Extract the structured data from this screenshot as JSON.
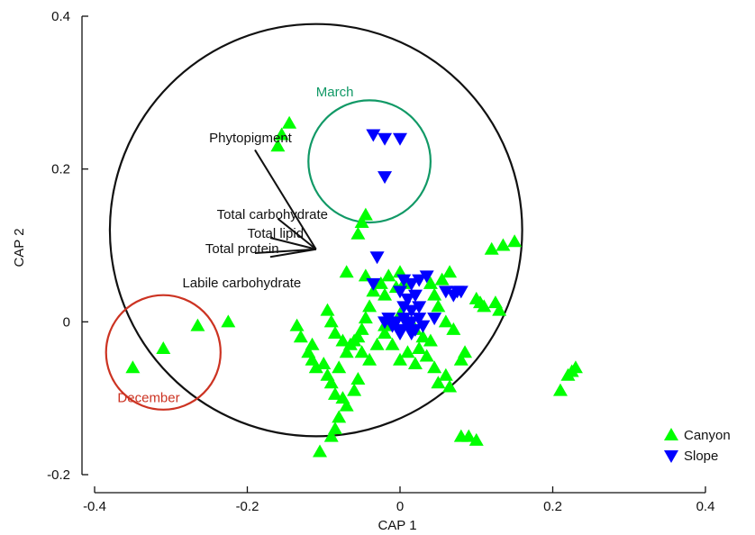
{
  "chart_data": {
    "type": "scatter",
    "title": "",
    "xlabel": "CAP 1",
    "ylabel": "CAP 2",
    "xlim": [
      -0.4,
      0.4
    ],
    "ylim": [
      -0.2,
      0.4
    ],
    "xticks": [
      -0.4,
      -0.2,
      0,
      0.2,
      0.4
    ],
    "yticks": [
      -0.2,
      0,
      0.2,
      0.4
    ],
    "xtick_labels": [
      "-0.4",
      "-0.2",
      "0",
      "0.2",
      "0.4"
    ],
    "ytick_labels": [
      "-0.2",
      "0",
      "0.2",
      "0.4"
    ],
    "grid": false,
    "legend_position": "bottom-right",
    "series": [
      {
        "name": "Canyon",
        "marker": "triangle-up",
        "color": "#00ff00",
        "points": [
          [
            -0.16,
            0.23
          ],
          [
            -0.155,
            0.245
          ],
          [
            -0.145,
            0.26
          ],
          [
            -0.055,
            0.115
          ],
          [
            -0.05,
            0.13
          ],
          [
            -0.045,
            0.14
          ],
          [
            -0.07,
            0.065
          ],
          [
            -0.045,
            0.06
          ],
          [
            -0.035,
            0.04
          ],
          [
            -0.04,
            0.02
          ],
          [
            -0.045,
            0.005
          ],
          [
            -0.05,
            -0.01
          ],
          [
            -0.055,
            -0.02
          ],
          [
            -0.025,
            0.05
          ],
          [
            -0.02,
            0.035
          ],
          [
            -0.015,
            0.06
          ],
          [
            -0.005,
            0.045
          ],
          [
            0.0,
            0.065
          ],
          [
            0.005,
            0.05
          ],
          [
            0.04,
            0.05
          ],
          [
            0.045,
            0.035
          ],
          [
            0.055,
            0.055
          ],
          [
            0.065,
            0.065
          ],
          [
            0.05,
            0.02
          ],
          [
            0.06,
            0.0
          ],
          [
            0.07,
            -0.01
          ],
          [
            -0.095,
            0.015
          ],
          [
            -0.09,
            0.0
          ],
          [
            -0.085,
            -0.015
          ],
          [
            -0.075,
            -0.025
          ],
          [
            -0.07,
            -0.04
          ],
          [
            -0.065,
            -0.03
          ],
          [
            -0.06,
            -0.025
          ],
          [
            -0.05,
            -0.04
          ],
          [
            -0.04,
            -0.05
          ],
          [
            -0.03,
            -0.03
          ],
          [
            -0.02,
            -0.015
          ],
          [
            -0.01,
            -0.03
          ],
          [
            0.0,
            -0.05
          ],
          [
            0.01,
            -0.04
          ],
          [
            0.02,
            -0.055
          ],
          [
            0.025,
            -0.035
          ],
          [
            0.035,
            -0.045
          ],
          [
            0.04,
            -0.025
          ],
          [
            0.045,
            -0.06
          ],
          [
            0.05,
            -0.08
          ],
          [
            0.06,
            -0.07
          ],
          [
            0.065,
            -0.085
          ],
          [
            0.08,
            -0.05
          ],
          [
            0.085,
            -0.04
          ],
          [
            -0.115,
            -0.05
          ],
          [
            -0.11,
            -0.06
          ],
          [
            -0.1,
            -0.055
          ],
          [
            -0.095,
            -0.07
          ],
          [
            -0.09,
            -0.08
          ],
          [
            -0.085,
            -0.095
          ],
          [
            -0.08,
            -0.06
          ],
          [
            -0.075,
            -0.1
          ],
          [
            -0.07,
            -0.11
          ],
          [
            -0.08,
            -0.125
          ],
          [
            -0.085,
            -0.14
          ],
          [
            -0.09,
            -0.15
          ],
          [
            -0.06,
            -0.09
          ],
          [
            -0.055,
            -0.075
          ],
          [
            -0.135,
            -0.005
          ],
          [
            -0.13,
            -0.02
          ],
          [
            -0.12,
            -0.04
          ],
          [
            -0.115,
            -0.03
          ],
          [
            -0.105,
            -0.17
          ],
          [
            0.08,
            -0.15
          ],
          [
            0.09,
            -0.15
          ],
          [
            0.1,
            -0.155
          ],
          [
            0.1,
            0.03
          ],
          [
            0.105,
            0.025
          ],
          [
            0.11,
            0.02
          ],
          [
            0.125,
            0.025
          ],
          [
            0.13,
            0.015
          ],
          [
            0.12,
            0.095
          ],
          [
            0.135,
            0.1
          ],
          [
            0.15,
            0.105
          ],
          [
            0.21,
            -0.09
          ],
          [
            0.22,
            -0.07
          ],
          [
            0.225,
            -0.065
          ],
          [
            0.23,
            -0.06
          ],
          [
            -0.35,
            -0.06
          ],
          [
            -0.31,
            -0.035
          ],
          [
            -0.265,
            -0.005
          ],
          [
            -0.225,
            0.0
          ],
          [
            -0.02,
            -0.005
          ],
          [
            0.0,
            0.01
          ],
          [
            0.01,
            0.0
          ],
          [
            0.02,
            -0.01
          ],
          [
            0.03,
            -0.02
          ]
        ]
      },
      {
        "name": "Slope",
        "marker": "triangle-down",
        "color": "#0000ff",
        "points": [
          [
            -0.035,
            0.245
          ],
          [
            -0.02,
            0.24
          ],
          [
            0.0,
            0.24
          ],
          [
            -0.02,
            0.19
          ],
          [
            -0.03,
            0.085
          ],
          [
            -0.035,
            0.05
          ],
          [
            0.005,
            0.055
          ],
          [
            0.015,
            0.05
          ],
          [
            0.025,
            0.055
          ],
          [
            0.035,
            0.06
          ],
          [
            0.06,
            0.04
          ],
          [
            0.07,
            0.035
          ],
          [
            0.075,
            0.04
          ],
          [
            0.08,
            0.04
          ],
          [
            0.0,
            0.04
          ],
          [
            0.01,
            0.03
          ],
          [
            0.02,
            0.035
          ],
          [
            0.005,
            0.02
          ],
          [
            0.015,
            0.015
          ],
          [
            0.025,
            0.02
          ],
          [
            -0.015,
            0.005
          ],
          [
            -0.005,
            0.0
          ],
          [
            0.005,
            0.005
          ],
          [
            0.015,
            0.0
          ],
          [
            0.025,
            0.005
          ],
          [
            -0.01,
            -0.005
          ],
          [
            0.0,
            -0.01
          ],
          [
            0.01,
            -0.005
          ],
          [
            0.02,
            -0.01
          ],
          [
            0.03,
            -0.005
          ],
          [
            0.045,
            0.005
          ],
          [
            -0.02,
            0.0
          ],
          [
            0.0,
            -0.015
          ],
          [
            0.015,
            -0.015
          ]
        ]
      }
    ],
    "vectors": [
      {
        "label": "Phytopigment",
        "origin": [
          -0.11,
          0.095
        ],
        "end": [
          -0.19,
          0.225
        ]
      },
      {
        "label": "Total carbohydrate",
        "origin": [
          -0.11,
          0.095
        ],
        "end": [
          -0.16,
          0.135
        ]
      },
      {
        "label": "Total lipid",
        "origin": [
          -0.11,
          0.095
        ],
        "end": [
          -0.17,
          0.11
        ]
      },
      {
        "label": "Total protein",
        "origin": [
          -0.11,
          0.095
        ],
        "end": [
          -0.19,
          0.09
        ]
      },
      {
        "label": "Labile carbohydrate",
        "origin": [
          -0.11,
          0.095
        ],
        "end": [
          -0.17,
          0.085
        ]
      }
    ],
    "circles": [
      {
        "name": "outer",
        "center": [
          -0.11,
          0.12
        ],
        "radius": 0.27,
        "color": "#111111",
        "label": ""
      },
      {
        "name": "march",
        "center": [
          -0.04,
          0.21
        ],
        "radius": 0.08,
        "color": "#119966",
        "label": "March"
      },
      {
        "name": "december",
        "center": [
          -0.31,
          -0.04
        ],
        "radius": 0.075,
        "color": "#cc3322",
        "label": "December"
      }
    ],
    "annotations": [
      {
        "text": "Phytopigment",
        "x": -0.25,
        "y": 0.235
      },
      {
        "text": "Total carbohydrate",
        "x": -0.24,
        "y": 0.135
      },
      {
        "text": "Total lipid",
        "x": -0.2,
        "y": 0.11
      },
      {
        "text": "Total protein",
        "x": -0.255,
        "y": 0.09
      },
      {
        "text": "Labile carbohydrate",
        "x": -0.285,
        "y": 0.045
      },
      {
        "text": "March",
        "x": -0.11,
        "y": 0.295,
        "color": "#119966"
      },
      {
        "text": "December",
        "x": -0.37,
        "y": -0.105,
        "color": "#cc3322"
      }
    ]
  }
}
